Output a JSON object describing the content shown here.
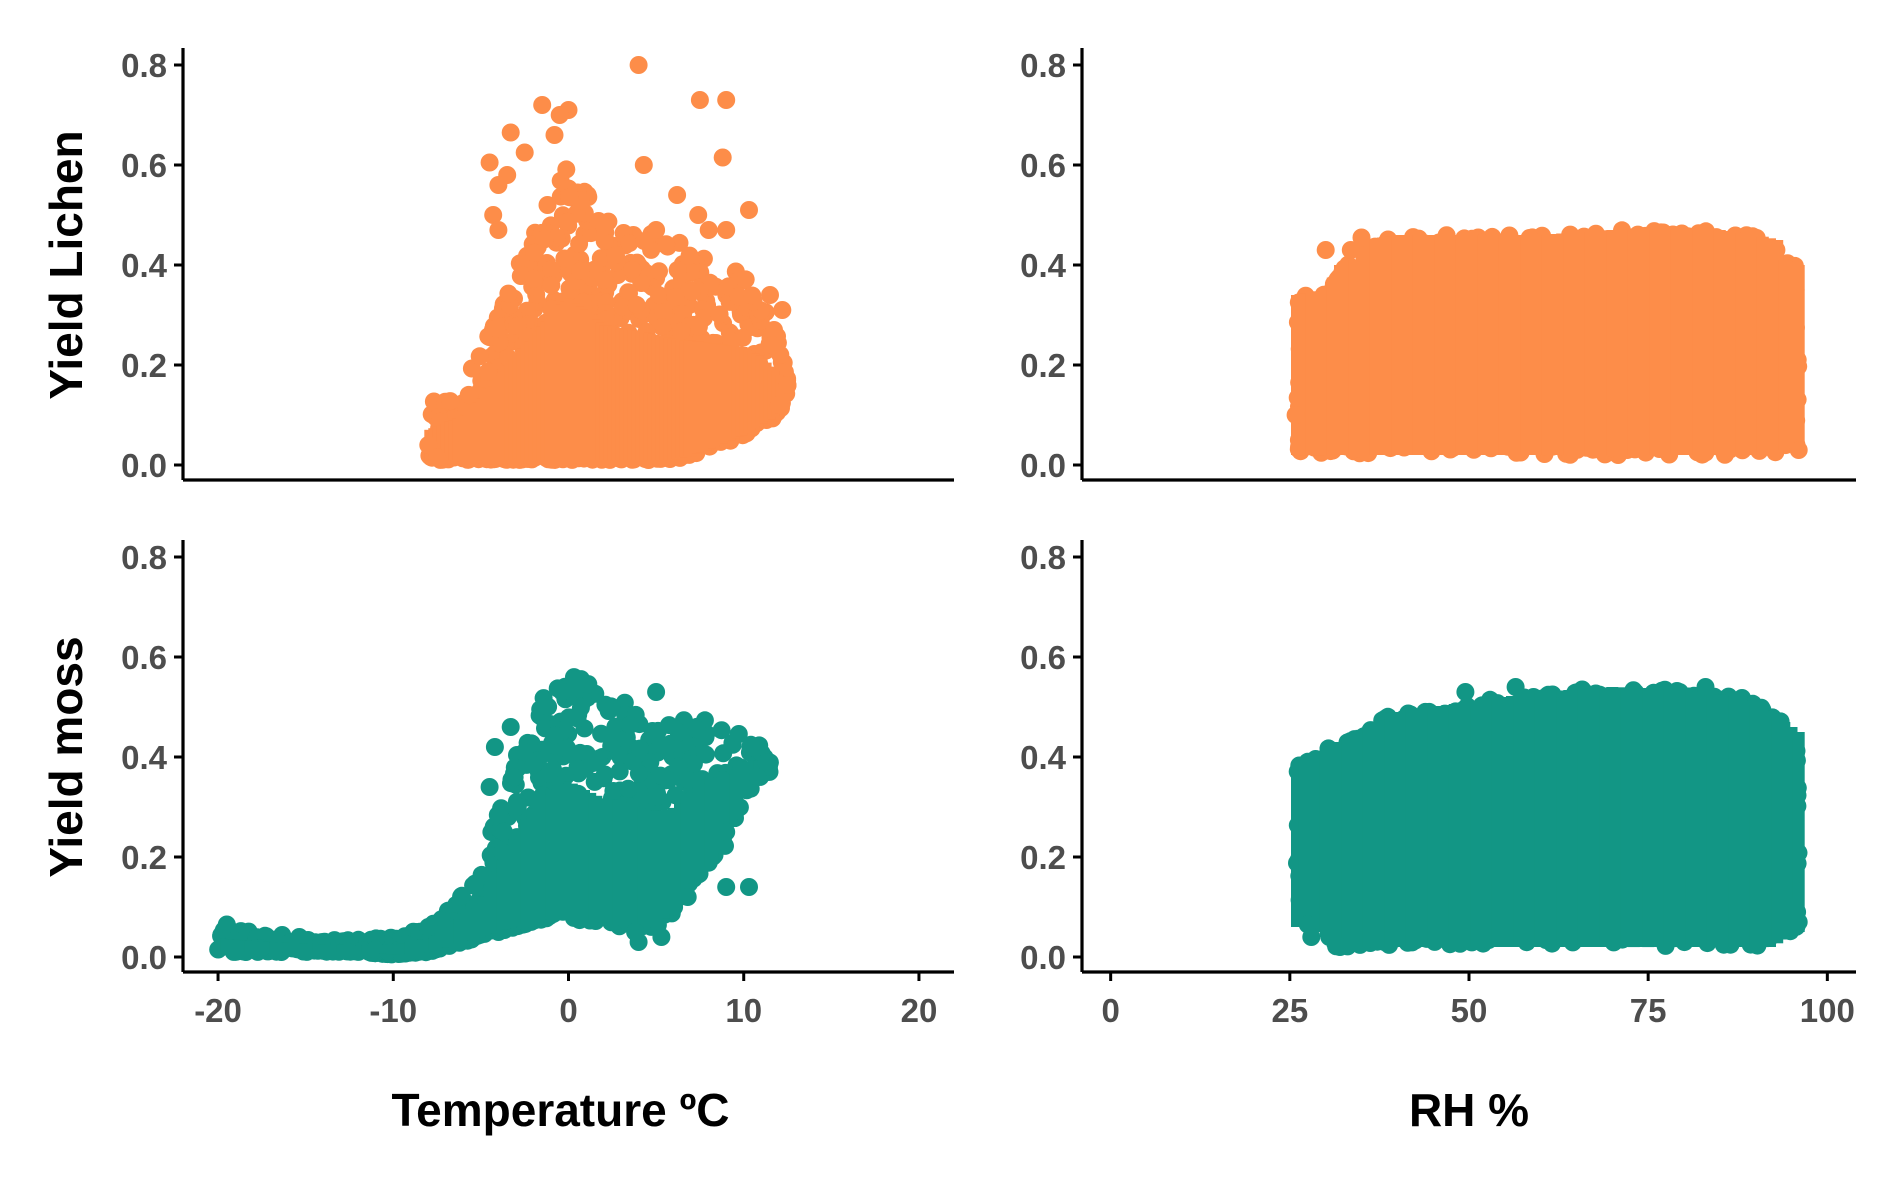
{
  "chart_data": {
    "type": "scatter",
    "layout": "2x2 facet grid",
    "grid": false,
    "legend": "none",
    "colors": {
      "lichen": "#FD8D49",
      "moss": "#129685"
    },
    "row_labels": [
      "Yield Lichen",
      "Yield moss"
    ],
    "column_labels": [
      "Temperature ºC",
      "RH %"
    ],
    "ylim": [
      0,
      0.8
    ],
    "y_ticks": [
      0.0,
      0.2,
      0.4,
      0.6,
      0.8
    ],
    "y_tick_labels": [
      "0.0",
      "0.2",
      "0.4",
      "0.6",
      "0.8"
    ],
    "x_axes": [
      {
        "xlim": [
          -22,
          22
        ],
        "ticks": [
          -20,
          -10,
          0,
          10,
          20
        ],
        "tick_labels": [
          "-20",
          "-10",
          "0",
          "10",
          "20"
        ]
      },
      {
        "xlim": [
          -4,
          104
        ],
        "ticks": [
          0,
          25,
          50,
          75,
          100
        ],
        "tick_labels": [
          "0",
          "25",
          "50",
          "75",
          "100"
        ]
      }
    ],
    "panels": [
      {
        "row": 0,
        "col": 0,
        "series": "lichen",
        "x_range": [
          -8,
          12.5
        ],
        "cloud": [
          [
            -8,
            0.01,
            0.12
          ],
          [
            -6,
            0.01,
            0.17
          ],
          [
            -4,
            0.01,
            0.3
          ],
          [
            -3,
            0.01,
            0.4
          ],
          [
            -2,
            0.01,
            0.46
          ],
          [
            -1,
            0.01,
            0.55
          ],
          [
            0,
            0.01,
            0.6
          ],
          [
            1,
            0.01,
            0.55
          ],
          [
            2,
            0.01,
            0.5
          ],
          [
            4,
            0.01,
            0.48
          ],
          [
            6,
            0.01,
            0.45
          ],
          [
            8,
            0.03,
            0.42
          ],
          [
            10,
            0.06,
            0.38
          ],
          [
            11,
            0.08,
            0.33
          ],
          [
            12,
            0.1,
            0.25
          ],
          [
            12.5,
            0.15,
            0.17
          ]
        ],
        "outliers": [
          [
            4,
            0.8
          ],
          [
            7.5,
            0.73
          ],
          [
            9,
            0.73
          ],
          [
            -1.5,
            0.72
          ],
          [
            0,
            0.71
          ],
          [
            -0.5,
            0.7
          ],
          [
            -3.3,
            0.665
          ],
          [
            -0.8,
            0.66
          ],
          [
            -2.5,
            0.625
          ],
          [
            8.8,
            0.615
          ],
          [
            -4.5,
            0.605
          ],
          [
            -3.5,
            0.58
          ],
          [
            4.3,
            0.6
          ],
          [
            -4,
            0.56
          ],
          [
            6.2,
            0.54
          ],
          [
            10.3,
            0.51
          ],
          [
            -4.3,
            0.5
          ],
          [
            7.4,
            0.5
          ],
          [
            -1.2,
            0.52
          ],
          [
            5,
            0.47
          ],
          [
            8,
            0.47
          ],
          [
            9,
            0.47
          ],
          [
            -4,
            0.47
          ],
          [
            11.5,
            0.34
          ],
          [
            12.2,
            0.31
          ],
          [
            12.5,
            0.16
          ],
          [
            12,
            0.12
          ],
          [
            -8,
            0.04
          ],
          [
            -7.5,
            0.015
          ]
        ]
      },
      {
        "row": 0,
        "col": 1,
        "series": "lichen",
        "x_range": [
          26,
          96
        ],
        "cloud": [
          [
            26,
            0.02,
            0.34
          ],
          [
            30,
            0.02,
            0.35
          ],
          [
            32,
            0.02,
            0.4
          ],
          [
            34,
            0.02,
            0.41
          ],
          [
            35,
            0.02,
            0.44
          ],
          [
            36,
            0.02,
            0.45
          ],
          [
            40,
            0.02,
            0.46
          ],
          [
            60,
            0.02,
            0.46
          ],
          [
            70,
            0.02,
            0.47
          ],
          [
            85,
            0.02,
            0.47
          ],
          [
            90,
            0.02,
            0.46
          ],
          [
            93,
            0.02,
            0.45
          ],
          [
            94,
            0.03,
            0.41
          ],
          [
            96,
            0.04,
            0.4
          ]
        ],
        "outliers": [
          [
            35,
            0.455
          ],
          [
            33.5,
            0.43
          ],
          [
            30,
            0.43
          ],
          [
            96,
            0.03
          ],
          [
            25.8,
            0.1
          ]
        ]
      },
      {
        "row": 1,
        "col": 0,
        "series": "moss",
        "x_range": [
          -20,
          11.5
        ],
        "cloud": [
          [
            -20,
            0.01,
            0.06
          ],
          [
            -18,
            0.01,
            0.05
          ],
          [
            -15,
            0.01,
            0.04
          ],
          [
            -12,
            0.01,
            0.035
          ],
          [
            -10,
            0.005,
            0.04
          ],
          [
            -8,
            0.01,
            0.06
          ],
          [
            -7,
            0.02,
            0.09
          ],
          [
            -6,
            0.03,
            0.13
          ],
          [
            -5,
            0.04,
            0.18
          ],
          [
            -4,
            0.05,
            0.3
          ],
          [
            -3,
            0.06,
            0.4
          ],
          [
            -2,
            0.07,
            0.5
          ],
          [
            -1,
            0.08,
            0.55
          ],
          [
            0,
            0.08,
            0.575
          ],
          [
            1,
            0.07,
            0.55
          ],
          [
            2,
            0.07,
            0.52
          ],
          [
            3,
            0.06,
            0.52
          ],
          [
            4,
            0.06,
            0.5
          ],
          [
            5,
            0.06,
            0.48
          ],
          [
            6,
            0.09,
            0.47
          ],
          [
            7,
            0.15,
            0.48
          ],
          [
            8,
            0.18,
            0.5
          ],
          [
            9,
            0.22,
            0.48
          ],
          [
            10,
            0.32,
            0.45
          ],
          [
            11,
            0.36,
            0.42
          ],
          [
            11.5,
            0.37,
            0.39
          ]
        ],
        "outliers": [
          [
            -19.5,
            0.065
          ],
          [
            -8,
            0.06
          ],
          [
            -4.2,
            0.42
          ],
          [
            -4.5,
            0.34
          ],
          [
            -3.3,
            0.46
          ],
          [
            5,
            0.53
          ],
          [
            4,
            0.03
          ],
          [
            5.3,
            0.04
          ],
          [
            3.8,
            0.05
          ],
          [
            6.8,
            0.12
          ],
          [
            9,
            0.14
          ],
          [
            10.3,
            0.14
          ],
          [
            9,
            0.25
          ],
          [
            11.3,
            0.39
          ],
          [
            10.8,
            0.36
          ]
        ]
      },
      {
        "row": 1,
        "col": 1,
        "series": "moss",
        "x_range": [
          26,
          96
        ],
        "cloud": [
          [
            26,
            0.06,
            0.39
          ],
          [
            28,
            0.06,
            0.4
          ],
          [
            29,
            0.05,
            0.4
          ],
          [
            30,
            0.04,
            0.42
          ],
          [
            31,
            0.02,
            0.42
          ],
          [
            33,
            0.02,
            0.44
          ],
          [
            40,
            0.02,
            0.49
          ],
          [
            45,
            0.02,
            0.5
          ],
          [
            50,
            0.02,
            0.51
          ],
          [
            60,
            0.02,
            0.53
          ],
          [
            70,
            0.02,
            0.54
          ],
          [
            80,
            0.02,
            0.535
          ],
          [
            88,
            0.02,
            0.52
          ],
          [
            92,
            0.02,
            0.49
          ],
          [
            96,
            0.05,
            0.45
          ]
        ],
        "outliers": [
          [
            49.5,
            0.53
          ],
          [
            56.5,
            0.54
          ],
          [
            83,
            0.54
          ],
          [
            27.5,
            0.065
          ],
          [
            28,
            0.04
          ],
          [
            30.5,
            0.04
          ],
          [
            32,
            0.02
          ],
          [
            26.5,
            0.1
          ],
          [
            96,
            0.07
          ],
          [
            95,
            0.1
          ]
        ]
      }
    ]
  }
}
